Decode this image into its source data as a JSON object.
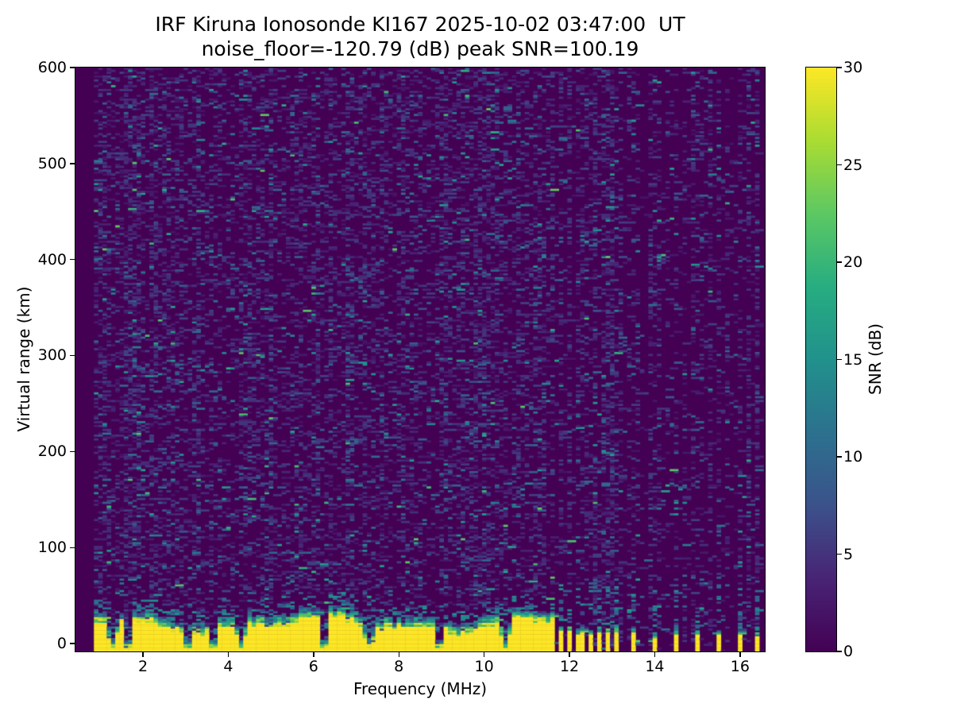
{
  "figure": {
    "kind": "matplotlib-ionogram",
    "background": "#ffffff",
    "text_color": "#000000"
  },
  "chart_data": {
    "type": "heatmap",
    "title_line1": "IRF Kiruna Ionosonde KI167 2025-10-02 03:47:00  UT",
    "title_line2": "noise_floor=-120.79 (dB) peak SNR=100.19",
    "xlabel": "Frequency (MHz)",
    "ylabel": "Virtual range (km)",
    "colorbar_label": "SNR (dB)",
    "xlim": [
      0.417,
      16.58
    ],
    "ylim": [
      -8.3,
      600
    ],
    "clim": [
      0,
      30
    ],
    "x_ticks": [
      2,
      4,
      6,
      8,
      10,
      12,
      14,
      16
    ],
    "y_ticks": [
      0,
      100,
      200,
      300,
      400,
      500,
      600
    ],
    "colorbar_ticks": [
      0,
      5,
      10,
      15,
      20,
      25,
      30
    ],
    "colormap": "viridis",
    "colormap_stops": [
      "#440154",
      "#482475",
      "#3b528b",
      "#2c718e",
      "#21918c",
      "#27ad81",
      "#5cc863",
      "#aadc32",
      "#fde725"
    ],
    "background_value_color": "#440154",
    "peak_value_color": "#fde725",
    "sweep": {
      "start_mhz": 0.9,
      "end_mhz": 16.48,
      "freq_step_mhz": 0.1,
      "range_gate_km": 2,
      "noise_floor_db": -120.79,
      "peak_snr_db": 100.19
    },
    "features": {
      "continuous_echo_band": {
        "freq_range_mhz": [
          0.9,
          11.62
        ],
        "top_km_mean": 30,
        "top_km_min": 16,
        "top_km_max": 45,
        "snr_db": 30,
        "transition_depth_km": 10
      },
      "band_notches_mhz": [
        1.3,
        1.65,
        3.05,
        3.65,
        4.28,
        6.25,
        7.27,
        8.95,
        10.5
      ],
      "sparse_echo_stripes_mhz": [
        11.77,
        11.96,
        12.15,
        12.33,
        12.52,
        12.7,
        12.89,
        13.07,
        13.5,
        13.97,
        14.47,
        15.03,
        15.46,
        16.0,
        16.38
      ],
      "stripe_top_km_max": 14,
      "noise_speckle_snr_db": [
        2,
        10
      ],
      "left_region_speckle_density": 0.28,
      "right_region_speckle_density": 0.05,
      "right_region_stripe_column_spacing_mhz": 0.21
    }
  }
}
